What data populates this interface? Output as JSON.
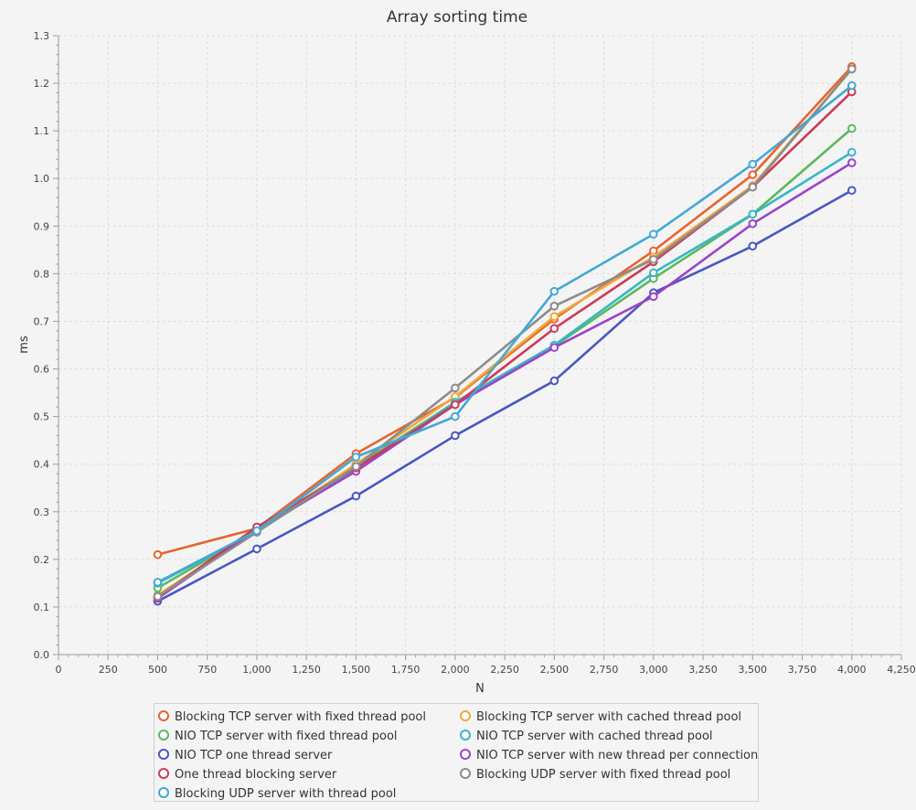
{
  "chart_data": {
    "type": "line",
    "title": "Array sorting time",
    "xlabel": "N",
    "ylabel": "ms",
    "xlim": [
      0,
      4250
    ],
    "ylim": [
      0.0,
      1.3
    ],
    "xticks": [
      "0",
      "250",
      "500",
      "750",
      "1,000",
      "1,250",
      "1,500",
      "1,750",
      "2,000",
      "2,250",
      "2,500",
      "2,750",
      "3,000",
      "3,250",
      "3,500",
      "3,750",
      "4,000",
      "4,250"
    ],
    "yticks": [
      "0.0",
      "0.1",
      "0.2",
      "0.3",
      "0.4",
      "0.5",
      "0.6",
      "0.7",
      "0.8",
      "0.9",
      "1.0",
      "1.1",
      "1.2",
      "1.3"
    ],
    "grid": true,
    "legend_position": "bottom",
    "x": [
      500,
      1000,
      1500,
      2000,
      2500,
      3000,
      3500,
      4000
    ],
    "series": [
      {
        "name": "Blocking TCP server with fixed thread pool",
        "color": "#e8642e",
        "values": [
          0.21,
          0.265,
          0.422,
          0.54,
          0.705,
          0.848,
          1.008,
          1.235
        ]
      },
      {
        "name": "Blocking TCP server with cached thread pool",
        "color": "#f0a83a",
        "values": [
          0.125,
          0.26,
          0.4,
          0.542,
          0.71,
          0.835,
          0.985,
          1.23
        ]
      },
      {
        "name": "NIO TCP server with fixed thread pool",
        "color": "#5cb85c",
        "values": [
          0.14,
          0.26,
          0.395,
          0.53,
          0.648,
          0.79,
          0.925,
          1.105
        ]
      },
      {
        "name": "NIO TCP server with cached thread pool",
        "color": "#38b6c6",
        "values": [
          0.15,
          0.258,
          0.39,
          0.53,
          0.65,
          0.802,
          0.925,
          1.055
        ]
      },
      {
        "name": "NIO TCP one thread server",
        "color": "#4a57c0",
        "values": [
          0.112,
          0.222,
          0.333,
          0.46,
          0.575,
          0.76,
          0.858,
          0.975
        ]
      },
      {
        "name": "NIO TCP server with new thread per connection",
        "color": "#9b44c8",
        "values": [
          0.118,
          0.262,
          0.385,
          0.525,
          0.645,
          0.752,
          0.905,
          1.033
        ]
      },
      {
        "name": "One thread blocking server",
        "color": "#cc3b57",
        "values": [
          0.12,
          0.268,
          0.392,
          0.525,
          0.685,
          0.825,
          0.982,
          1.182
        ]
      },
      {
        "name": "Blocking UDP server with fixed thread pool",
        "color": "#8c8c8c",
        "values": [
          0.122,
          0.257,
          0.395,
          0.56,
          0.732,
          0.83,
          0.982,
          1.23
        ]
      },
      {
        "name": "Blocking UDP server with thread pool",
        "color": "#43a9d4",
        "values": [
          0.152,
          0.26,
          0.415,
          0.5,
          0.763,
          0.883,
          1.03,
          1.195
        ]
      }
    ]
  }
}
